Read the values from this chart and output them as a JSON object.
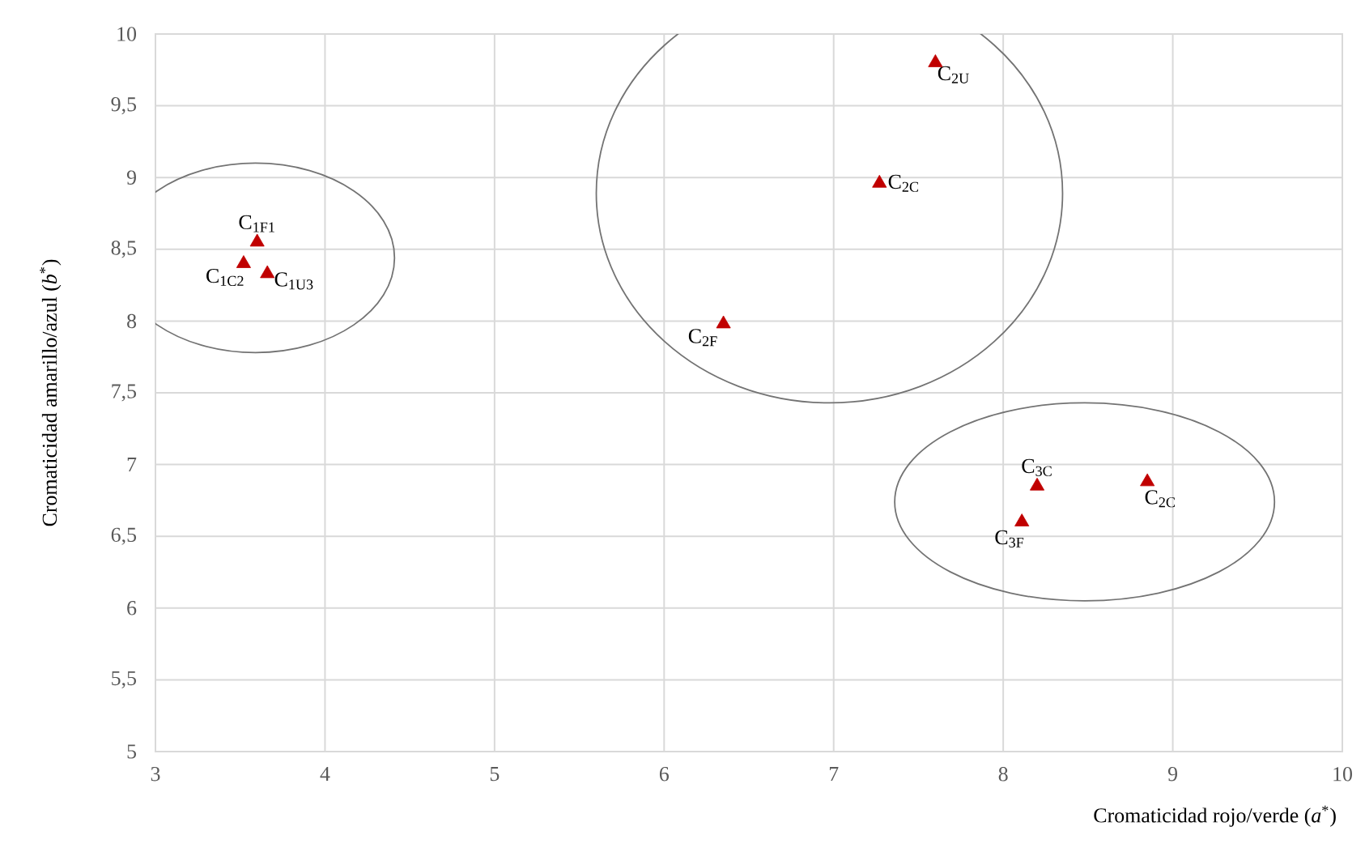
{
  "chart_data": {
    "type": "scatter",
    "xlabel": "Cromaticidad rojo/verde (*a*$^{*}$)",
    "ylabel": "Cromaticidad amarillo/azul (*b*$^{*}$)",
    "series": [
      {
        "color": "#c00000",
        "x": [
          3.6,
          3.52,
          3.66
        ],
        "values": [
          8.55,
          8.4,
          8.33
        ]
      },
      {
        "color": "#c00000",
        "x": [
          7.6,
          7.27,
          6.35
        ],
        "values": [
          9.8,
          8.96,
          7.98
        ]
      },
      {
        "color": "#c00000",
        "x": [
          8.2,
          8.11,
          8.85
        ],
        "values": [
          6.85,
          6.6,
          6.88
        ]
      }
    ],
    "annotations": [
      {
        "text": "C$_{1F1}$",
        "x": 3.6,
        "y": 8.55
      },
      {
        "text": "C$_{1C2}$",
        "x": 3.52,
        "y": 8.4
      },
      {
        "text": "C$_{1U3}$",
        "x": 3.66,
        "y": 8.33
      },
      {
        "text": "C$_{2U}$",
        "x": 7.6,
        "y": 9.8
      },
      {
        "text": "C$_{2C}$",
        "x": 7.27,
        "y": 8.96
      },
      {
        "text": "C$_{2F}$",
        "x": 6.35,
        "y": 7.98
      },
      {
        "text": "C$_{3C}$",
        "x": 8.2,
        "y": 6.85
      },
      {
        "text": "C$_{3F}$",
        "x": 8.11,
        "y": 6.6
      },
      {
        "text": "C$_{2C}$",
        "x": 8.85,
        "y": 6.88
      }
    ],
    "xlim": [
      3,
      10
    ],
    "ylim": [
      5,
      10
    ],
    "xticks": [
      3,
      4,
      5,
      6,
      7,
      8,
      9,
      10
    ],
    "yticks": [
      5,
      {
        "value": 5.5,
        "label": "5,5"
      },
      6,
      {
        "value": 6.5,
        "label": "6,5"
      },
      7,
      {
        "value": 7.5,
        "label": "7,5"
      },
      8,
      {
        "value": 8.5,
        "label": "8,5"
      },
      9,
      {
        "value": 9.5,
        "label": "9,5"
      },
      10
    ],
    "grid": true,
    "marker": "triangle"
  }
}
